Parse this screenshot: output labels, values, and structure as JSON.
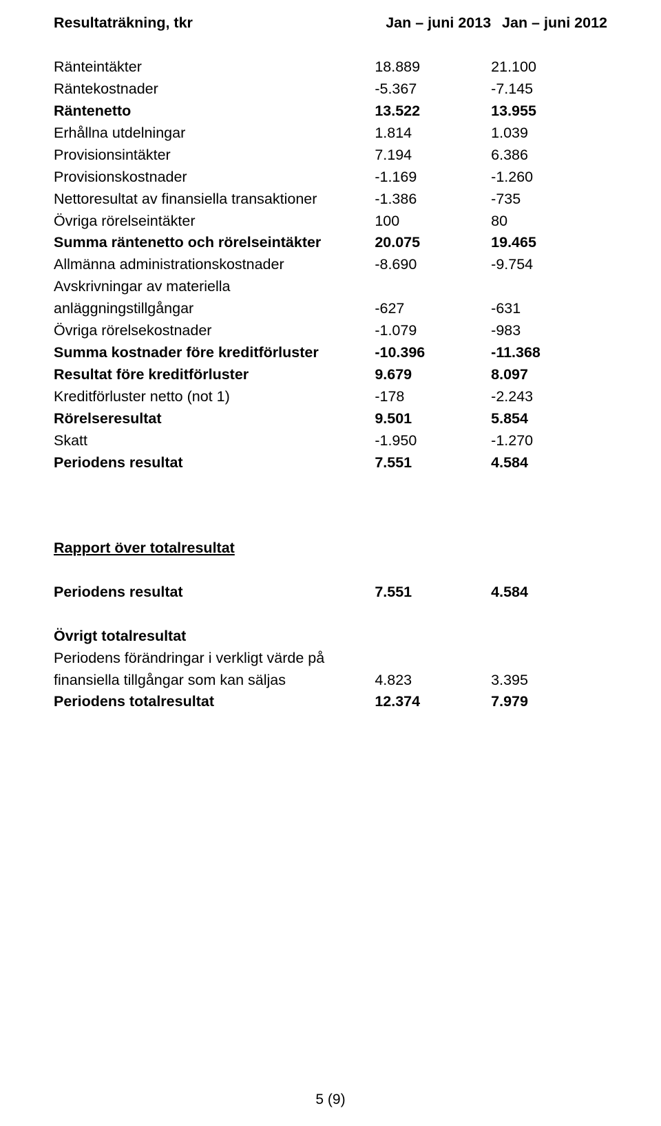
{
  "table": {
    "header_title": "Resultaträkning, tkr",
    "col1_header": "Jan – juni 2013",
    "col2_header": "Jan – juni 2012",
    "rows": [
      {
        "label": "Ränteintäkter",
        "c1": "18.889",
        "c2": "21.100",
        "bold": false
      },
      {
        "label": "Räntekostnader",
        "c1": "-5.367",
        "c2": "-7.145",
        "bold": false
      },
      {
        "label": "Räntenetto",
        "c1": "13.522",
        "c2": "13.955",
        "bold": true
      },
      {
        "label": "Erhållna utdelningar",
        "c1": "1.814",
        "c2": "1.039",
        "bold": false
      },
      {
        "label": "Provisionsintäkter",
        "c1": "7.194",
        "c2": "6.386",
        "bold": false
      },
      {
        "label": "Provisionskostnader",
        "c1": "-1.169",
        "c2": "-1.260",
        "bold": false
      },
      {
        "label": "Nettoresultat av finansiella transaktioner",
        "c1": "-1.386",
        "c2": "-735",
        "bold": false
      },
      {
        "label": "Övriga rörelseintäkter",
        "c1": "100",
        "c2": "80",
        "bold": false
      },
      {
        "label": "Summa räntenetto och rörelseintäkter",
        "c1": "20.075",
        "c2": "19.465",
        "bold": true
      },
      {
        "label": "Allmänna administrationskostnader",
        "c1": "-8.690",
        "c2": "-9.754",
        "bold": false
      }
    ],
    "avskriv_line1": "Avskrivningar av materiella",
    "avskriv_line2": "anläggningstillgångar",
    "avskriv_c1": "-627",
    "avskriv_c2": "-631",
    "rows2": [
      {
        "label": "Övriga rörelsekostnader",
        "c1": "-1.079",
        "c2": "-983",
        "bold": false
      },
      {
        "label": "Summa kostnader före kreditförluster",
        "c1": "-10.396",
        "c2": "-11.368",
        "bold": true
      },
      {
        "label": "Resultat före kreditförluster",
        "c1": "9.679",
        "c2": "8.097",
        "bold": true
      },
      {
        "label": "Kreditförluster netto (not 1)",
        "c1": "-178",
        "c2": "-2.243",
        "bold": false
      },
      {
        "label": "Rörelseresultat",
        "c1": "9.501",
        "c2": "5.854",
        "bold": true
      },
      {
        "label": "Skatt",
        "c1": "-1.950",
        "c2": "-1.270",
        "bold": false
      },
      {
        "label": "Periodens resultat",
        "c1": "7.551",
        "c2": "4.584",
        "bold": true
      }
    ]
  },
  "section2": {
    "title": "Rapport över totalresultat",
    "row1": {
      "label": "Periodens resultat",
      "c1": "7.551",
      "c2": "4.584"
    },
    "ovrigt_label": "Övrigt totalresultat",
    "line1": "Periodens förändringar i verkligt värde på",
    "line2": "finansiella tillgångar som kan säljas",
    "line2_c1": "4.823",
    "line2_c2": "3.395",
    "total": {
      "label": "Periodens totalresultat",
      "c1": "12.374",
      "c2": "7.979"
    }
  },
  "page_number": "5 (9)"
}
